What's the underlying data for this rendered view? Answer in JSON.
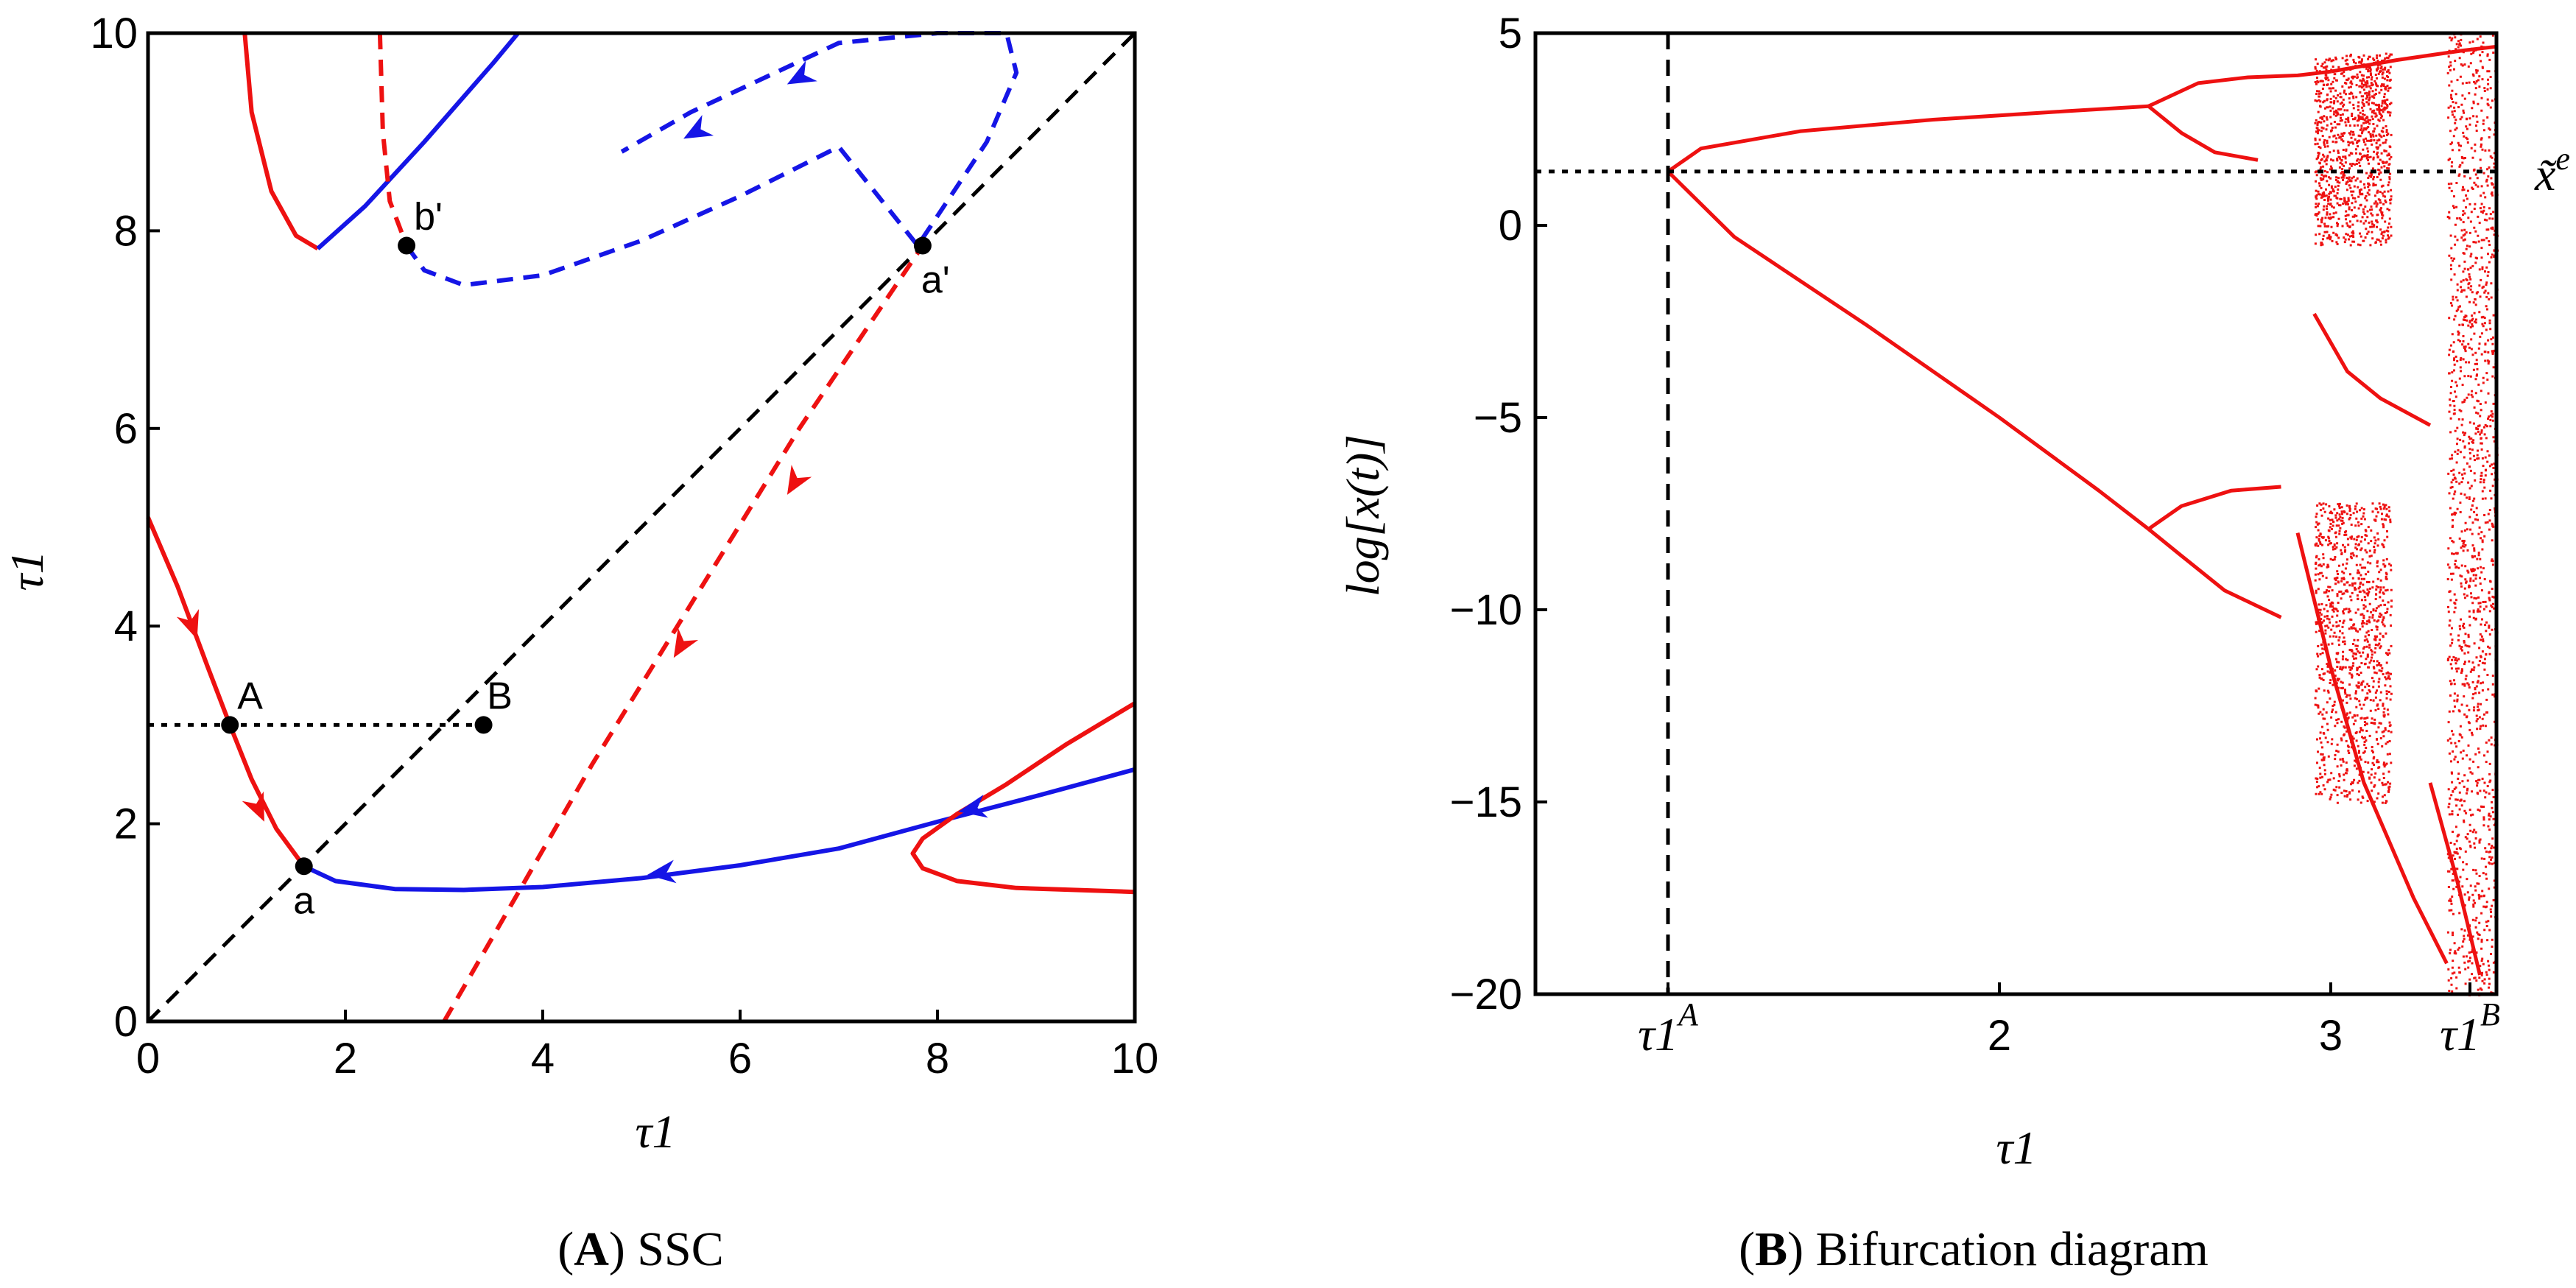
{
  "colors": {
    "red": "#ee1111",
    "blue": "#1515e6",
    "black": "#000000",
    "frame": "#000000"
  },
  "chart_data": [
    {
      "type": "line",
      "title": "SSC",
      "caption": {
        "letter": "A",
        "text": "SSC"
      },
      "xlabel": "τ1",
      "ylabel": "τ1",
      "xlim": [
        0,
        10
      ],
      "ylim": [
        0,
        10
      ],
      "xticks": [
        {
          "v": 0,
          "label": "0"
        },
        {
          "v": 2,
          "label": "2"
        },
        {
          "v": 4,
          "label": "4"
        },
        {
          "v": 6,
          "label": "6"
        },
        {
          "v": 8,
          "label": "8"
        },
        {
          "v": 10,
          "label": "10"
        }
      ],
      "yticks": [
        {
          "v": 0,
          "label": "0"
        },
        {
          "v": 2,
          "label": "2"
        },
        {
          "v": 4,
          "label": "4"
        },
        {
          "v": 6,
          "label": "6"
        },
        {
          "v": 8,
          "label": "8"
        },
        {
          "v": 10,
          "label": "10"
        }
      ],
      "series": [
        {
          "name": "red-solid-lower",
          "color": "red",
          "style": "solid",
          "points": [
            [
              0,
              5.1
            ],
            [
              0.3,
              4.4
            ],
            [
              0.6,
              3.6
            ],
            [
              0.83,
              3.0
            ],
            [
              1.05,
              2.45
            ],
            [
              1.3,
              1.95
            ],
            [
              1.58,
              1.57
            ]
          ]
        },
        {
          "name": "blue-solid-lower",
          "color": "blue",
          "style": "solid",
          "points": [
            [
              1.58,
              1.57
            ],
            [
              1.9,
              1.42
            ],
            [
              2.5,
              1.34
            ],
            [
              3.2,
              1.33
            ],
            [
              4,
              1.36
            ],
            [
              5,
              1.45
            ],
            [
              6,
              1.58
            ],
            [
              7,
              1.75
            ],
            [
              8,
              2.02
            ],
            [
              9,
              2.28
            ],
            [
              10,
              2.55
            ]
          ]
        },
        {
          "name": "red-solid-hook",
          "color": "red",
          "style": "solid",
          "points": [
            [
              10,
              3.22
            ],
            [
              9.3,
              2.8
            ],
            [
              8.7,
              2.4
            ],
            [
              8.2,
              2.1
            ],
            [
              7.85,
              1.85
            ],
            [
              7.75,
              1.7
            ],
            [
              7.85,
              1.55
            ],
            [
              8.2,
              1.42
            ],
            [
              8.8,
              1.35
            ],
            [
              10,
              1.31
            ]
          ]
        },
        {
          "name": "red-dashed-diagonal",
          "color": "red",
          "style": "dashed",
          "points": [
            [
              3.0,
              0
            ],
            [
              4.5,
              2.6
            ],
            [
              6.6,
              6.0
            ],
            [
              7.85,
              7.85
            ]
          ]
        },
        {
          "name": "blue-dashed-loop",
          "color": "blue",
          "style": "dashed",
          "points": [
            [
              2.62,
              7.85
            ],
            [
              2.8,
              7.6
            ],
            [
              3.2,
              7.45
            ],
            [
              4.0,
              7.55
            ],
            [
              5.0,
              7.9
            ],
            [
              6.0,
              8.35
            ],
            [
              7.0,
              8.85
            ],
            [
              7.8,
              7.85
            ],
            [
              8.5,
              8.9
            ],
            [
              8.8,
              9.6
            ],
            [
              8.7,
              10.0
            ],
            [
              8.0,
              10.0
            ],
            [
              7.0,
              9.9
            ],
            [
              5.5,
              9.2
            ],
            [
              4.8,
              8.8
            ]
          ]
        },
        {
          "name": "red-solid-upper",
          "color": "red",
          "style": "solid",
          "points": [
            [
              0.98,
              10.0
            ],
            [
              1.05,
              9.2
            ],
            [
              1.25,
              8.4
            ],
            [
              1.5,
              7.95
            ],
            [
              1.72,
              7.82
            ]
          ]
        },
        {
          "name": "blue-solid-upper",
          "color": "blue",
          "style": "solid",
          "points": [
            [
              1.72,
              7.82
            ],
            [
              2.2,
              8.25
            ],
            [
              2.8,
              8.9
            ],
            [
              3.5,
              9.7
            ],
            [
              3.75,
              10.0
            ]
          ]
        },
        {
          "name": "red-dashed-upper",
          "color": "red",
          "style": "dashed",
          "points": [
            [
              2.35,
              10.0
            ],
            [
              2.38,
              9.0
            ],
            [
              2.45,
              8.3
            ],
            [
              2.62,
              7.85
            ]
          ]
        },
        {
          "name": "black-dashed-diagonal",
          "color": "black",
          "style": "dashed",
          "points": [
            [
              0,
              0
            ],
            [
              10,
              10
            ]
          ]
        },
        {
          "name": "black-dotted-horizontal",
          "color": "black",
          "style": "dotted",
          "points": [
            [
              0,
              3.0
            ],
            [
              3.4,
              3.0
            ]
          ]
        }
      ],
      "arrows": [
        {
          "at": [
            0.45,
            4.0
          ],
          "dir": [
            0.35,
            -1
          ],
          "color": "red"
        },
        {
          "at": [
            1.12,
            2.15
          ],
          "dir": [
            0.45,
            -1
          ],
          "color": "red"
        },
        {
          "at": [
            5.2,
            1.5
          ],
          "dir": [
            -1,
            -0.12
          ],
          "color": "blue"
        },
        {
          "at": [
            8.35,
            2.15
          ],
          "dir": [
            -1,
            -0.2
          ],
          "color": "blue"
        },
        {
          "at": [
            6.55,
            5.45
          ],
          "dir": [
            -0.6,
            -1
          ],
          "color": "red"
        },
        {
          "at": [
            5.4,
            3.8
          ],
          "dir": [
            -0.6,
            -1
          ],
          "color": "red"
        },
        {
          "at": [
            6.6,
            9.55
          ],
          "dir": [
            -1,
            -0.55
          ],
          "color": "blue"
        },
        {
          "at": [
            5.55,
            9.0
          ],
          "dir": [
            -1,
            -0.55
          ],
          "color": "blue"
        }
      ],
      "points": [
        {
          "label": "A",
          "x": 0.83,
          "y": 3.0,
          "anchor": "above-right"
        },
        {
          "label": "B",
          "x": 3.4,
          "y": 3.0,
          "anchor": "above"
        },
        {
          "label": "a",
          "x": 1.58,
          "y": 1.57,
          "anchor": "below"
        },
        {
          "label": "b'",
          "x": 2.62,
          "y": 7.85,
          "anchor": "above-right"
        },
        {
          "label": "a'",
          "x": 7.85,
          "y": 7.85,
          "anchor": "below-right"
        }
      ]
    },
    {
      "type": "scatter",
      "title": "Bifurcation diagram",
      "caption": {
        "letter": "B",
        "text": "Bifurcation diagram"
      },
      "xlabel": "τ1",
      "ylabel": "log[x(t)]",
      "xlim": [
        0.6,
        3.5
      ],
      "ylim": [
        -20,
        5
      ],
      "xticks": [
        {
          "v": 1.0,
          "label": "τ1A"
        },
        {
          "v": 2.0,
          "label": "2"
        },
        {
          "v": 3.0,
          "label": "3"
        },
        {
          "v": 3.42,
          "label": "τ1B"
        }
      ],
      "yticks": [
        {
          "v": 5,
          "label": "5"
        },
        {
          "v": 0,
          "label": "0"
        },
        {
          "v": -5,
          "label": "−5"
        },
        {
          "v": -10,
          "label": "−10"
        },
        {
          "v": -15,
          "label": "−15"
        },
        {
          "v": -20,
          "label": "−20"
        }
      ],
      "reference_lines": [
        {
          "name": "tau1A-vertical",
          "orientation": "vertical",
          "value": 1.0,
          "style": "dashed"
        },
        {
          "name": "x-tilde-e-horizontal",
          "orientation": "horizontal",
          "value": 1.4,
          "style": "dotted",
          "label": "x̃e"
        }
      ],
      "branches": [
        {
          "name": "upper-branch",
          "points": [
            [
              1.0,
              1.4
            ],
            [
              1.1,
              2.0
            ],
            [
              1.4,
              2.45
            ],
            [
              1.8,
              2.75
            ],
            [
              2.2,
              2.97
            ],
            [
              2.45,
              3.1
            ]
          ]
        },
        {
          "name": "lower-branch",
          "points": [
            [
              1.0,
              1.4
            ],
            [
              1.2,
              -0.3
            ],
            [
              1.6,
              -2.6
            ],
            [
              2.0,
              -5.0
            ],
            [
              2.3,
              -6.9
            ],
            [
              2.45,
              -7.9
            ]
          ]
        },
        {
          "name": "upper-split-a",
          "points": [
            [
              2.45,
              3.1
            ],
            [
              2.6,
              3.7
            ],
            [
              2.75,
              3.85
            ],
            [
              2.9,
              3.9
            ],
            [
              3.0,
              4.0
            ]
          ]
        },
        {
          "name": "upper-split-b",
          "points": [
            [
              2.45,
              3.1
            ],
            [
              2.55,
              2.4
            ],
            [
              2.65,
              1.9
            ],
            [
              2.78,
              1.7
            ]
          ]
        },
        {
          "name": "lower-split-a",
          "points": [
            [
              2.45,
              -7.9
            ],
            [
              2.55,
              -7.3
            ],
            [
              2.7,
              -6.9
            ],
            [
              2.85,
              -6.8
            ]
          ]
        },
        {
          "name": "lower-split-b",
          "points": [
            [
              2.45,
              -7.9
            ],
            [
              2.55,
              -8.6
            ],
            [
              2.68,
              -9.5
            ],
            [
              2.85,
              -10.2
            ]
          ]
        },
        {
          "name": "dropping-curve-1",
          "points": [
            [
              2.9,
              -8.0
            ],
            [
              3.0,
              -11.5
            ],
            [
              3.1,
              -14.5
            ],
            [
              3.25,
              -17.5
            ],
            [
              3.35,
              -19.2
            ]
          ]
        },
        {
          "name": "dropping-curve-2",
          "points": [
            [
              2.95,
              -2.3
            ],
            [
              3.05,
              -3.8
            ],
            [
              3.15,
              -4.5
            ],
            [
              3.3,
              -5.2
            ]
          ]
        },
        {
          "name": "top-envelope",
          "points": [
            [
              3.0,
              4.0
            ],
            [
              3.2,
              4.3
            ],
            [
              3.4,
              4.55
            ],
            [
              3.5,
              4.65
            ]
          ]
        },
        {
          "name": "chaotic-drop-3",
          "points": [
            [
              3.3,
              -14.5
            ],
            [
              3.38,
              -17.0
            ],
            [
              3.45,
              -19.5
            ]
          ]
        }
      ],
      "chaotic_bands": [
        {
          "x": [
            2.95,
            3.18
          ],
          "y": [
            -0.5,
            4.5
          ]
        },
        {
          "x": [
            2.95,
            3.18
          ],
          "y": [
            -15.0,
            -7.2
          ]
        },
        {
          "x": [
            3.35,
            3.5
          ],
          "y": [
            -20,
            5
          ]
        }
      ]
    }
  ]
}
